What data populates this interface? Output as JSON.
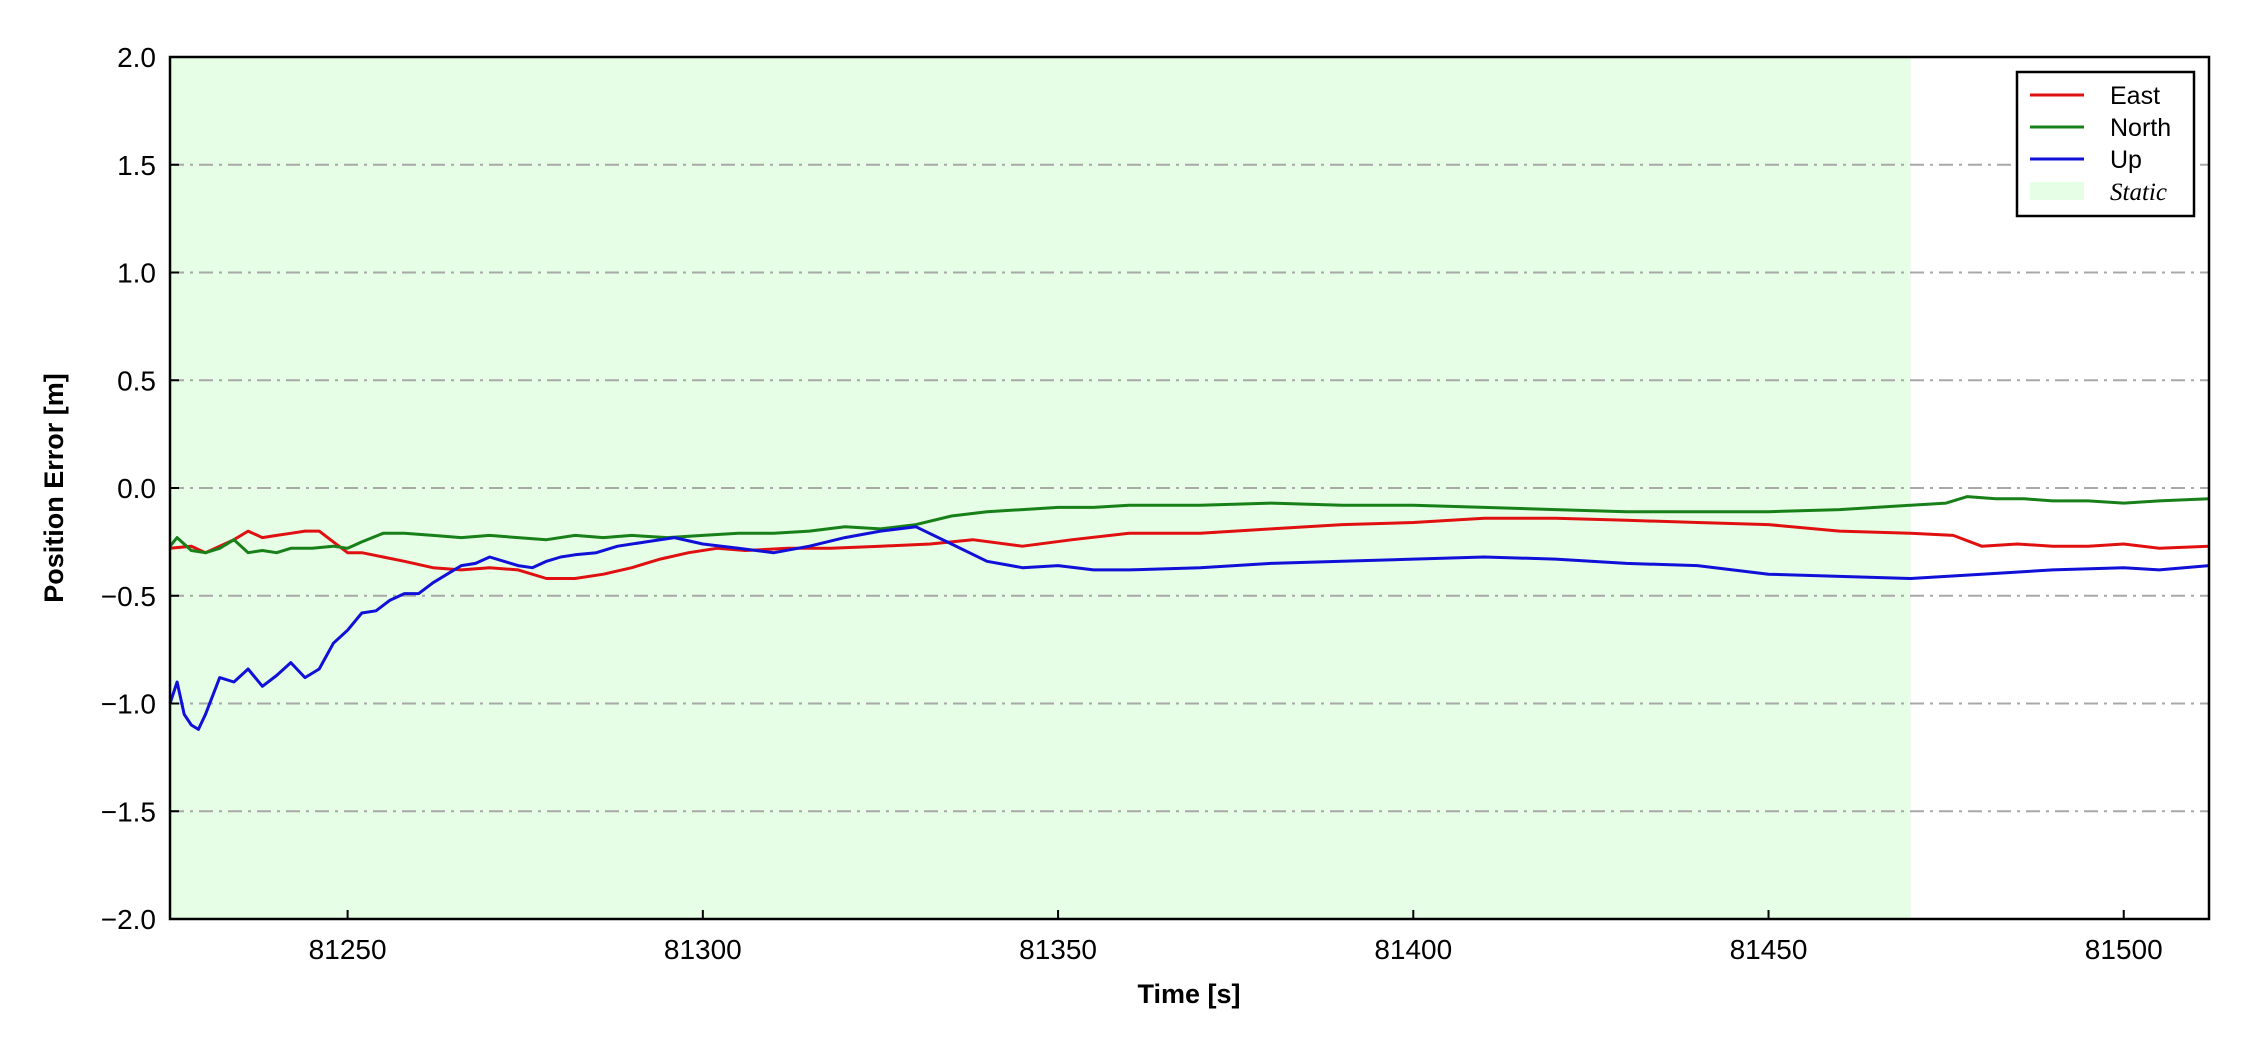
{
  "chart_data": {
    "type": "line",
    "title": "",
    "xlabel": "Time [s]",
    "ylabel": "Position Error [m]",
    "xlim": [
      81225,
      81512
    ],
    "ylim": [
      -2.0,
      2.0
    ],
    "x_ticks": [
      81250,
      81300,
      81350,
      81400,
      81450,
      81500
    ],
    "x_tick_labels": [
      "81250",
      "81300",
      "81350",
      "81400",
      "81450",
      "81500"
    ],
    "y_ticks": [
      -2.0,
      -1.5,
      -1.0,
      -0.5,
      0.0,
      0.5,
      1.0,
      1.5,
      2.0
    ],
    "y_tick_labels": [
      "−2.0",
      "−1.5",
      "−1.0",
      "−0.5",
      "0.0",
      "0.5",
      "1.0",
      "1.5",
      "2.0"
    ],
    "grid": "horizontal dash-dot",
    "legend_position": "top-right",
    "shaded_regions": [
      {
        "name": "Static",
        "x_start": 81225,
        "x_end": 81470,
        "color": "#e6fde6"
      }
    ],
    "series": [
      {
        "name": "East",
        "color": "#e01010",
        "x": [
          81225,
          81228,
          81230,
          81232,
          81234,
          81236,
          81238,
          81240,
          81242,
          81244,
          81246,
          81248,
          81250,
          81252,
          81255,
          81258,
          81262,
          81266,
          81270,
          81274,
          81278,
          81282,
          81286,
          81290,
          81294,
          81298,
          81302,
          81306,
          81312,
          81318,
          81325,
          81332,
          81338,
          81345,
          81352,
          81360,
          81370,
          81380,
          81390,
          81400,
          81410,
          81420,
          81430,
          81440,
          81450,
          81460,
          81470,
          81476,
          81480,
          81485,
          81490,
          81495,
          81500,
          81505,
          81512
        ],
        "y": [
          -0.28,
          -0.27,
          -0.3,
          -0.27,
          -0.24,
          -0.2,
          -0.23,
          -0.22,
          -0.21,
          -0.2,
          -0.2,
          -0.25,
          -0.3,
          -0.3,
          -0.32,
          -0.34,
          -0.37,
          -0.38,
          -0.37,
          -0.38,
          -0.42,
          -0.42,
          -0.4,
          -0.37,
          -0.33,
          -0.3,
          -0.28,
          -0.29,
          -0.28,
          -0.28,
          -0.27,
          -0.26,
          -0.24,
          -0.27,
          -0.24,
          -0.21,
          -0.21,
          -0.19,
          -0.17,
          -0.16,
          -0.14,
          -0.14,
          -0.15,
          -0.16,
          -0.17,
          -0.2,
          -0.21,
          -0.22,
          -0.27,
          -0.26,
          -0.27,
          -0.27,
          -0.26,
          -0.28,
          -0.27
        ]
      },
      {
        "name": "North",
        "color": "#188018",
        "x": [
          81225,
          81226,
          81228,
          81230,
          81232,
          81234,
          81236,
          81238,
          81240,
          81242,
          81245,
          81248,
          81250,
          81252,
          81255,
          81258,
          81262,
          81266,
          81270,
          81274,
          81278,
          81282,
          81286,
          81290,
          81295,
          81300,
          81305,
          81310,
          81315,
          81320,
          81325,
          81330,
          81335,
          81340,
          81345,
          81350,
          81355,
          81360,
          81370,
          81380,
          81390,
          81400,
          81410,
          81420,
          81430,
          81440,
          81450,
          81460,
          81470,
          81475,
          81478,
          81482,
          81486,
          81490,
          81495,
          81500,
          81505,
          81512
        ],
        "y": [
          -0.27,
          -0.23,
          -0.29,
          -0.3,
          -0.28,
          -0.24,
          -0.3,
          -0.29,
          -0.3,
          -0.28,
          -0.28,
          -0.27,
          -0.28,
          -0.25,
          -0.21,
          -0.21,
          -0.22,
          -0.23,
          -0.22,
          -0.23,
          -0.24,
          -0.22,
          -0.23,
          -0.22,
          -0.23,
          -0.22,
          -0.21,
          -0.21,
          -0.2,
          -0.18,
          -0.19,
          -0.17,
          -0.13,
          -0.11,
          -0.1,
          -0.09,
          -0.09,
          -0.08,
          -0.08,
          -0.07,
          -0.08,
          -0.08,
          -0.09,
          -0.1,
          -0.11,
          -0.11,
          -0.11,
          -0.1,
          -0.08,
          -0.07,
          -0.04,
          -0.05,
          -0.05,
          -0.06,
          -0.06,
          -0.07,
          -0.06,
          -0.05
        ]
      },
      {
        "name": "Up",
        "color": "#1010d8",
        "x": [
          81225,
          81226,
          81227,
          81228,
          81229,
          81230,
          81232,
          81234,
          81236,
          81238,
          81240,
          81242,
          81244,
          81246,
          81248,
          81250,
          81252,
          81254,
          81256,
          81258,
          81260,
          81262,
          81264,
          81266,
          81268,
          81270,
          81272,
          81274,
          81276,
          81278,
          81280,
          81282,
          81285,
          81288,
          81292,
          81296,
          81300,
          81305,
          81310,
          81315,
          81320,
          81325,
          81330,
          81335,
          81340,
          81345,
          81350,
          81355,
          81360,
          81370,
          81380,
          81390,
          81400,
          81410,
          81420,
          81430,
          81440,
          81450,
          81460,
          81470,
          81480,
          81490,
          81500,
          81505,
          81512
        ],
        "y": [
          -1.0,
          -0.9,
          -1.05,
          -1.1,
          -1.12,
          -1.05,
          -0.88,
          -0.9,
          -0.84,
          -0.92,
          -0.87,
          -0.81,
          -0.88,
          -0.84,
          -0.72,
          -0.66,
          -0.58,
          -0.57,
          -0.52,
          -0.49,
          -0.49,
          -0.44,
          -0.4,
          -0.36,
          -0.35,
          -0.32,
          -0.34,
          -0.36,
          -0.37,
          -0.34,
          -0.32,
          -0.31,
          -0.3,
          -0.27,
          -0.25,
          -0.23,
          -0.26,
          -0.28,
          -0.3,
          -0.27,
          -0.23,
          -0.2,
          -0.18,
          -0.26,
          -0.34,
          -0.37,
          -0.36,
          -0.38,
          -0.38,
          -0.37,
          -0.35,
          -0.34,
          -0.33,
          -0.32,
          -0.33,
          -0.35,
          -0.36,
          -0.4,
          -0.41,
          -0.42,
          -0.4,
          -0.38,
          -0.37,
          -0.38,
          -0.36
        ]
      }
    ]
  }
}
